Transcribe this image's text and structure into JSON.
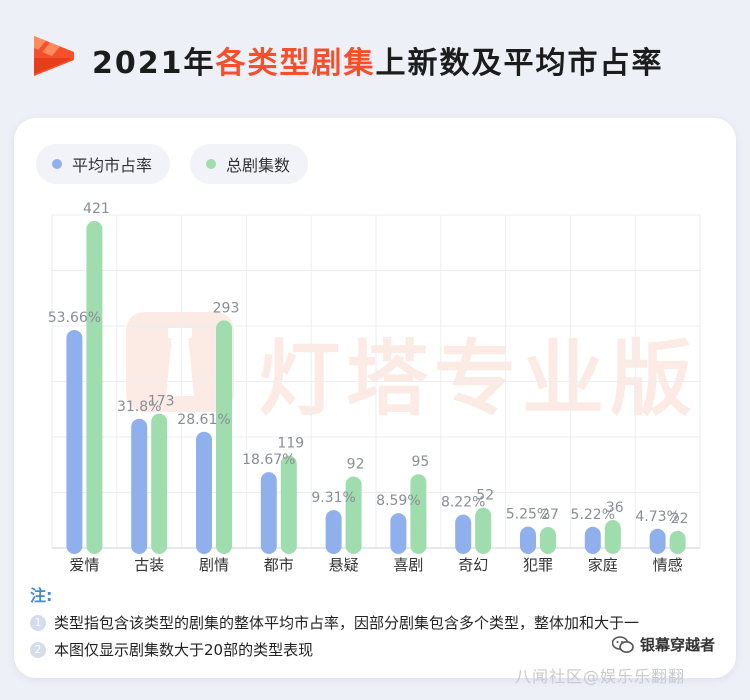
{
  "header": {
    "title_prefix": "2021年",
    "title_highlight": "各类型剧集",
    "title_suffix": "上新数及平均市占率"
  },
  "watermark_text": "灯塔专业版",
  "chart_data": {
    "type": "bar",
    "categories": [
      "爱情",
      "古装",
      "剧情",
      "都市",
      "悬疑",
      "喜剧",
      "奇幻",
      "犯罪",
      "家庭",
      "情感"
    ],
    "series": [
      {
        "name": "平均市占率",
        "unit": "%",
        "values": [
          53.66,
          31.8,
          28.61,
          18.67,
          9.31,
          8.59,
          8.22,
          5.25,
          5.22,
          4.73
        ],
        "labels": [
          "53.66%",
          "31.8%",
          "28.61%",
          "18.67%",
          "9.31%",
          "8.59%",
          "8.22%",
          "5.25%",
          "5.22%",
          "4.73%"
        ],
        "color": "#8fb0ec"
      },
      {
        "name": "总剧集数",
        "values": [
          421,
          173,
          293,
          119,
          92,
          95,
          52,
          27,
          36,
          22
        ],
        "labels": [
          "421",
          "173",
          "293",
          "119",
          "92",
          "95",
          "52",
          "27",
          "36",
          "22"
        ],
        "color": "#9fdcae"
      }
    ],
    "legend": "top-left",
    "grid": true
  },
  "notes": {
    "title": "注:",
    "items": [
      {
        "num": "1",
        "text": "类型指包含该类型的剧集的整体平均市占率，因部分剧集包含多个类型，整体加和大于一"
      },
      {
        "num": "2",
        "text": "本图仅显示剧集数大于20部的类型表现"
      }
    ]
  },
  "footer": {
    "wechat_account": "银幕穿越者",
    "site_mark": "八闻社区@娱乐乐翻翻"
  },
  "colors": {
    "accent": "#f4502c",
    "blue": "#8fb0ec",
    "green": "#9fdcae"
  }
}
